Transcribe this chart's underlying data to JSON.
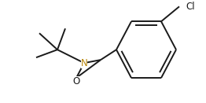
{
  "bg_color": "#ffffff",
  "line_color": "#1a1a1a",
  "n_color": "#b8860b",
  "o_color": "#1a1a1a",
  "cl_color": "#1a1a1a",
  "line_width": 1.4,
  "fig_width": 2.62,
  "fig_height": 1.31,
  "dpi": 100,
  "N_label": "N",
  "O_label": "O",
  "Cl_label": "Cl",
  "label_fontsize": 8.5
}
